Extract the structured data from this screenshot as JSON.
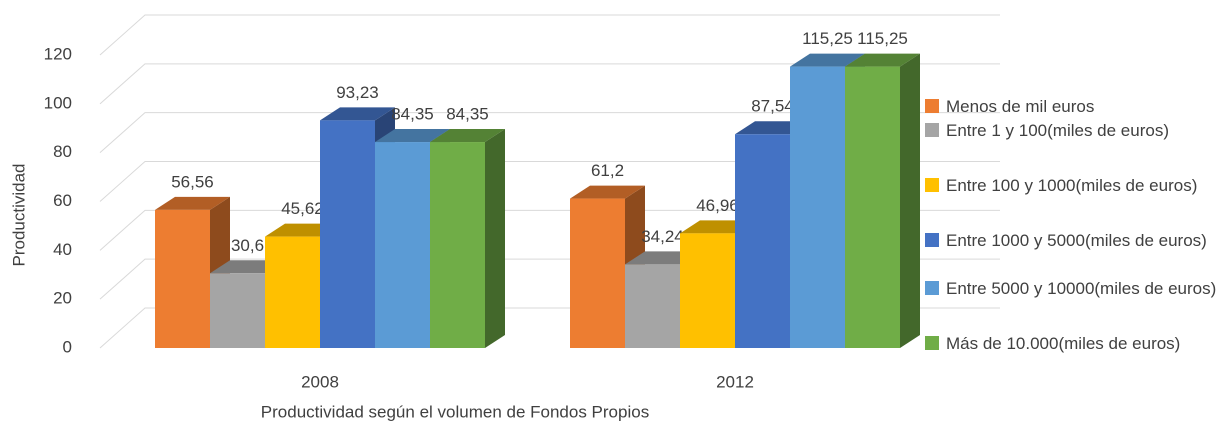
{
  "chart_data": {
    "type": "bar3d",
    "x_label": "Productividad según el volumen de Fondos Propios",
    "y_label": "Productividad",
    "categories": [
      "2008",
      "2012"
    ],
    "ylim": [
      0,
      120
    ],
    "yticks": [
      0,
      20,
      40,
      60,
      80,
      100,
      120
    ],
    "grid": true,
    "legend": "right",
    "series": [
      {
        "name": "Menos de mil euros",
        "color": "#ed7d31",
        "values": [
          56.56,
          61.2
        ],
        "value_labels": [
          "56,56",
          "61,2"
        ]
      },
      {
        "name": "Entre 1 y 100(miles de euros)",
        "color": "#a5a5a5",
        "values": [
          30.6,
          34.24
        ],
        "value_labels": [
          "30,6",
          "34,24"
        ]
      },
      {
        "name": "Entre 100 y 1000(miles de euros)",
        "color": "#ffc000",
        "values": [
          45.62,
          46.96
        ],
        "value_labels": [
          "45,62",
          "46,96"
        ]
      },
      {
        "name": "Entre 1000 y 5000(miles de euros)",
        "color": "#4472c4",
        "values": [
          93.23,
          87.54
        ],
        "value_labels": [
          "93,23",
          "87,54"
        ]
      },
      {
        "name": "Entre 5000 y 10000(miles de euros)",
        "color": "#5b9bd5",
        "values": [
          84.35,
          115.25
        ],
        "value_labels": [
          "84,35",
          "115,25"
        ]
      },
      {
        "name": "Más de 10.000(miles de euros)",
        "color": "#70ad47",
        "values": [
          84.35,
          115.25
        ],
        "value_labels": [
          "84,35",
          "115,25"
        ]
      }
    ]
  }
}
